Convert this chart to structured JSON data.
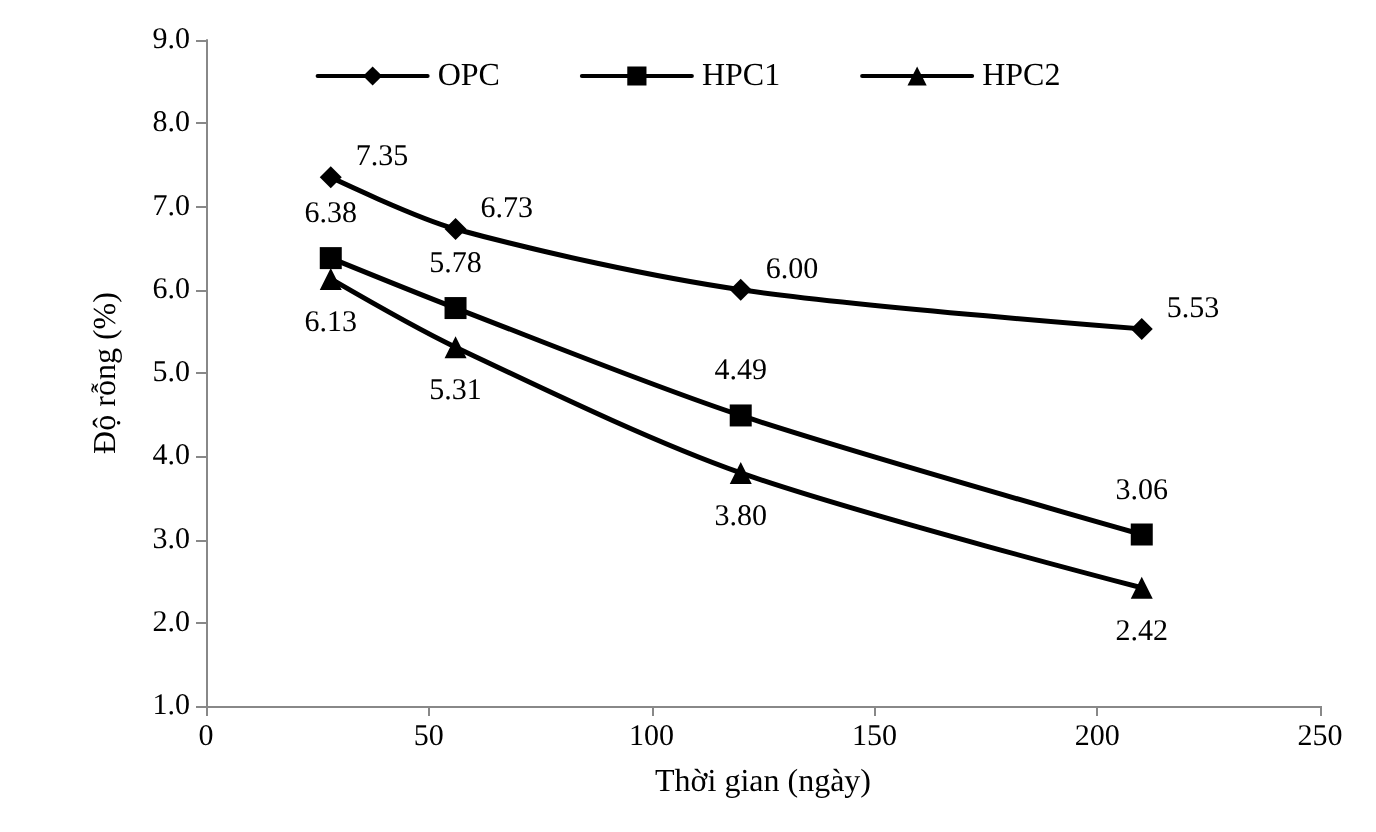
{
  "chart_data": {
    "type": "line",
    "xlabel": "Thời gian (ngày)",
    "ylabel": "Độ rỗng (%)",
    "x": [
      28,
      56,
      120,
      210
    ],
    "series": [
      {
        "name": "OPC",
        "color": "#000000",
        "marker": "diamond",
        "values": [
          7.35,
          6.73,
          6.0,
          5.53
        ],
        "value_labels": [
          "7.35",
          "6.73",
          "6.00",
          "5.53"
        ]
      },
      {
        "name": "HPC1",
        "color": "#000000",
        "marker": "square",
        "values": [
          6.38,
          5.78,
          4.49,
          3.06
        ],
        "value_labels": [
          "6.38",
          "5.78",
          "4.49",
          "3.06"
        ]
      },
      {
        "name": "HPC2",
        "color": "#000000",
        "marker": "triangle",
        "values": [
          6.13,
          5.31,
          3.8,
          2.42
        ],
        "value_labels": [
          "6.13",
          "5.31",
          "3.80",
          "2.42"
        ]
      }
    ],
    "xlim": [
      0,
      250
    ],
    "xticks": [
      0,
      50,
      100,
      150,
      200,
      250
    ],
    "ylim": [
      1,
      9
    ],
    "yticks": [
      {
        "value": 1,
        "label": "1.0"
      },
      {
        "value": 2,
        "label": "2.0"
      },
      {
        "value": 3,
        "label": "3.0"
      },
      {
        "value": 4,
        "label": "4.0"
      },
      {
        "value": 5,
        "label": "5.0"
      },
      {
        "value": 6,
        "label": "6.0"
      },
      {
        "value": 7,
        "label": "7.0"
      },
      {
        "value": 8,
        "label": "8.0"
      },
      {
        "value": 9,
        "label": "9.0"
      }
    ],
    "grid": false,
    "legend": "top",
    "line_style": "solid"
  }
}
